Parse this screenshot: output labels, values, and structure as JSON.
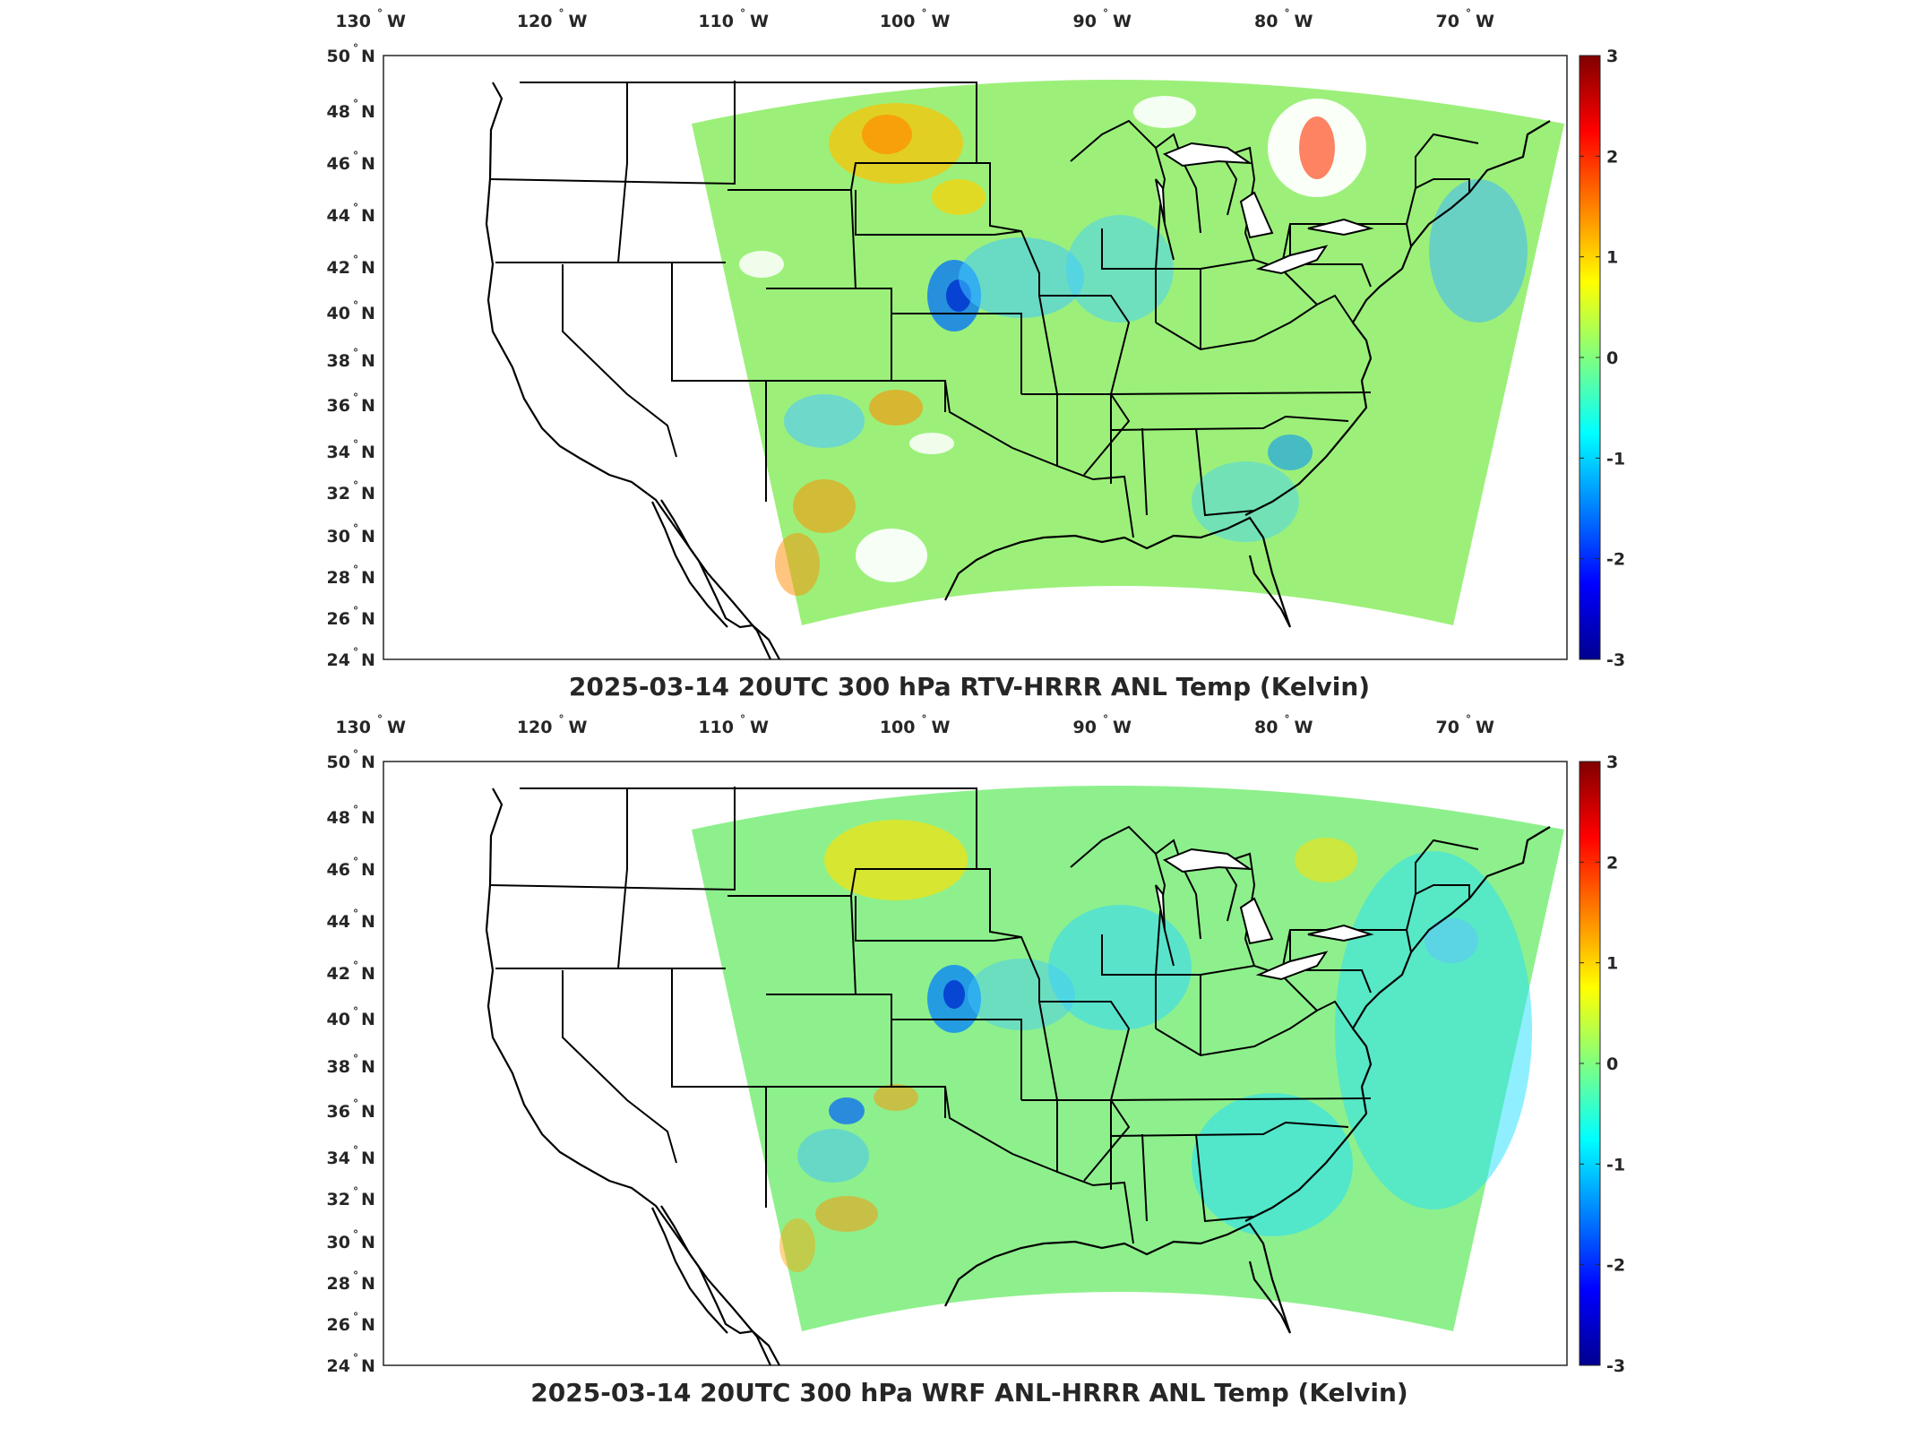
{
  "colors": {
    "colormap": [
      "#00008f",
      "#0000ff",
      "#0080ff",
      "#00ffff",
      "#80ff80",
      "#ffff00",
      "#ff8000",
      "#ff0000",
      "#800000"
    ],
    "state_lines": "#000000",
    "frame": "#262626"
  },
  "panels": [
    {
      "id": "top",
      "title": "2025-03-14 20UTC 300 hPa RTV-HRRR ANL Temp (Kelvin)",
      "lon_ticks": [
        {
          "num": "130",
          "hem": "W"
        },
        {
          "num": "120",
          "hem": "W"
        },
        {
          "num": "110",
          "hem": "W"
        },
        {
          "num": "100",
          "hem": "W"
        },
        {
          "num": "90",
          "hem": "W"
        },
        {
          "num": "80",
          "hem": "W"
        },
        {
          "num": "70",
          "hem": "W"
        }
      ],
      "lat_ticks": [
        {
          "num": "50",
          "hem": "N"
        },
        {
          "num": "48",
          "hem": "N"
        },
        {
          "num": "46",
          "hem": "N"
        },
        {
          "num": "44",
          "hem": "N"
        },
        {
          "num": "42",
          "hem": "N"
        },
        {
          "num": "40",
          "hem": "N"
        },
        {
          "num": "38",
          "hem": "N"
        },
        {
          "num": "36",
          "hem": "N"
        },
        {
          "num": "34",
          "hem": "N"
        },
        {
          "num": "32",
          "hem": "N"
        },
        {
          "num": "30",
          "hem": "N"
        },
        {
          "num": "28",
          "hem": "N"
        },
        {
          "num": "26",
          "hem": "N"
        },
        {
          "num": "24",
          "hem": "N"
        }
      ],
      "colorbar": {
        "min": -3,
        "max": 3,
        "ticks": [
          "3",
          "2",
          "1",
          "0",
          "-1",
          "-2",
          "-3"
        ]
      }
    },
    {
      "id": "bottom",
      "title": "2025-03-14 20UTC 300 hPa WRF ANL-HRRR ANL Temp (Kelvin)",
      "lon_ticks": [
        {
          "num": "130",
          "hem": "W"
        },
        {
          "num": "120",
          "hem": "W"
        },
        {
          "num": "110",
          "hem": "W"
        },
        {
          "num": "100",
          "hem": "W"
        },
        {
          "num": "90",
          "hem": "W"
        },
        {
          "num": "80",
          "hem": "W"
        },
        {
          "num": "70",
          "hem": "W"
        }
      ],
      "lat_ticks": [
        {
          "num": "50",
          "hem": "N"
        },
        {
          "num": "48",
          "hem": "N"
        },
        {
          "num": "46",
          "hem": "N"
        },
        {
          "num": "44",
          "hem": "N"
        },
        {
          "num": "42",
          "hem": "N"
        },
        {
          "num": "40",
          "hem": "N"
        },
        {
          "num": "38",
          "hem": "N"
        },
        {
          "num": "36",
          "hem": "N"
        },
        {
          "num": "34",
          "hem": "N"
        },
        {
          "num": "32",
          "hem": "N"
        },
        {
          "num": "30",
          "hem": "N"
        },
        {
          "num": "28",
          "hem": "N"
        },
        {
          "num": "26",
          "hem": "N"
        },
        {
          "num": "24",
          "hem": "N"
        }
      ],
      "colorbar": {
        "min": -3,
        "max": 3,
        "ticks": [
          "3",
          "2",
          "1",
          "0",
          "-1",
          "-2",
          "-3"
        ]
      }
    }
  ]
}
